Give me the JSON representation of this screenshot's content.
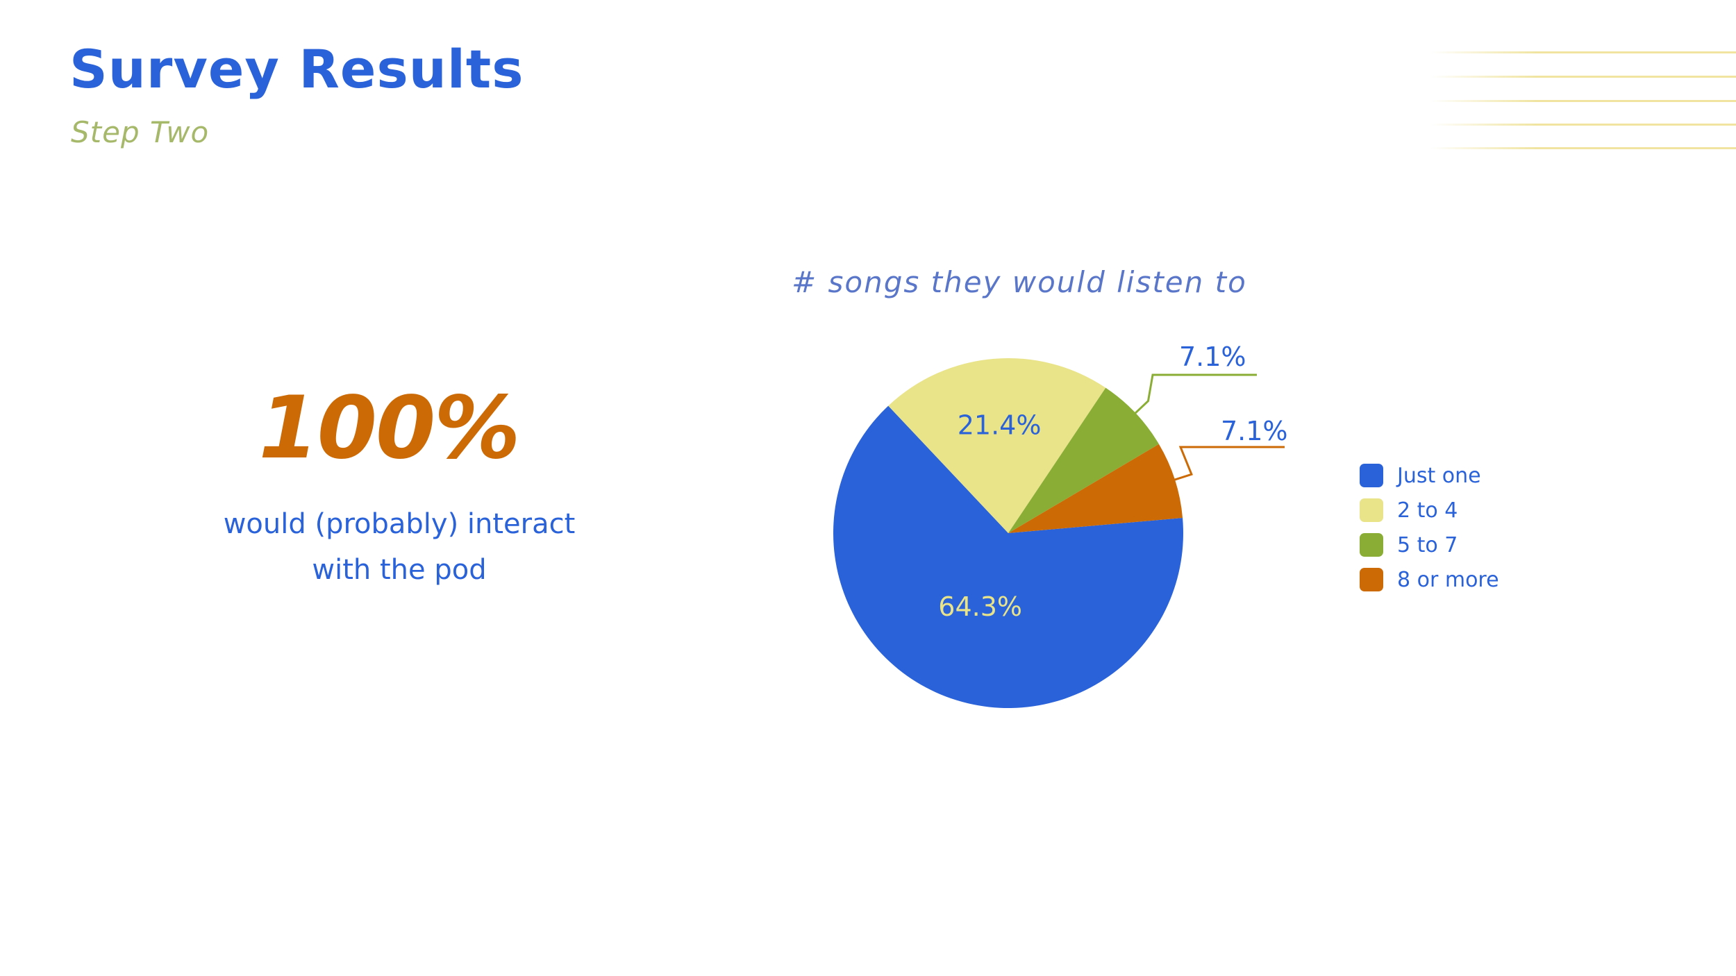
{
  "header": {
    "title": "Survey Results",
    "subtitle": "Step Two"
  },
  "stat": {
    "value": "100%",
    "caption_line1": "would (probably) interact",
    "caption_line2": "with the pod"
  },
  "colors": {
    "title": "#2a62d9",
    "subtitle": "#a6b86a",
    "stat": "#cc6a06",
    "decoration": "#f0e4a0"
  },
  "chart_data": {
    "type": "pie",
    "title": "# songs they would listen to",
    "legend_position": "right",
    "categories": [
      "Just one",
      "2 to 4",
      "5 to 7",
      "8 or more"
    ],
    "values": [
      64.3,
      21.4,
      7.1,
      7.1
    ],
    "labels": [
      "64.3%",
      "21.4%",
      "7.1%",
      "7.1%"
    ],
    "colors": [
      "#2a62d9",
      "#e9e38a",
      "#8aae35",
      "#cc6a06"
    ],
    "label_colors": [
      "#e9e38a",
      "#2a62d9",
      "#2a62d9",
      "#2a62d9"
    ]
  }
}
